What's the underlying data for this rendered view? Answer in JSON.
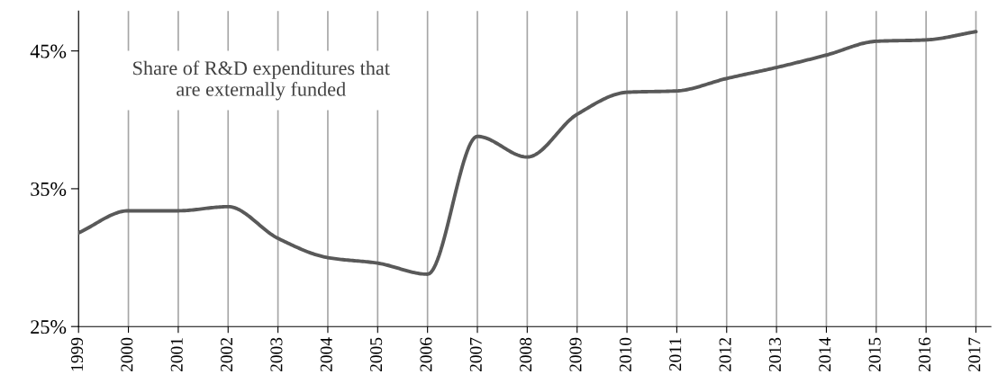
{
  "chart_data": {
    "type": "line",
    "annotations": [
      "Share of R&D expenditures that\nare externally funded"
    ],
    "x": [
      1999,
      2000,
      2001,
      2002,
      2003,
      2004,
      2005,
      2006,
      2007,
      2008,
      2009,
      2010,
      2011,
      2012,
      2013,
      2014,
      2015,
      2016,
      2017
    ],
    "series": [
      {
        "color": "#595959",
        "values": [
          31.8,
          33.4,
          33.4,
          33.7,
          31.4,
          30.0,
          29.6,
          28.8,
          38.8,
          37.3,
          40.4,
          42.0,
          42.1,
          43.0,
          43.8,
          44.7,
          45.7,
          45.8,
          46.4
        ]
      }
    ],
    "xlim": [
      1999,
      2017.3
    ],
    "xticks": [
      1999,
      2000,
      2001,
      2002,
      2003,
      2004,
      2005,
      2006,
      2007,
      2008,
      2009,
      2010,
      2011,
      2012,
      2013,
      2014,
      2015,
      2016,
      2017
    ],
    "ylim": [
      25,
      47.9
    ],
    "yticks": [
      {
        "value": 25,
        "label": "25%"
      },
      {
        "value": 35,
        "label": "35%"
      },
      {
        "value": 45,
        "label": "45%"
      }
    ],
    "grid": "x",
    "legend": false,
    "marker": "none",
    "line_style": "solid"
  }
}
